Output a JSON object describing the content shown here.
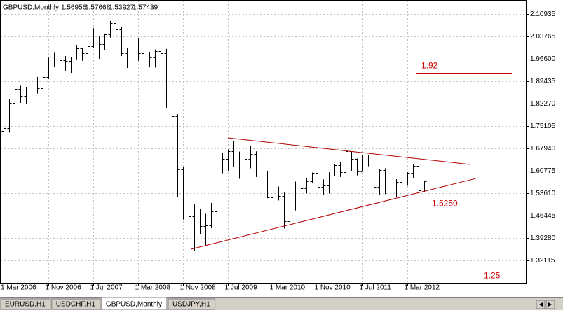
{
  "chart_data": {
    "type": "ohlc",
    "title": "GBPUSD,Monthly",
    "categories": [
      "1 Mar 2006",
      null,
      null,
      null,
      null,
      null,
      null,
      null,
      "1 Nov 2006",
      null,
      null,
      null,
      null,
      null,
      null,
      null,
      "1 Jul 2007",
      null,
      null,
      null,
      null,
      null,
      null,
      null,
      "1 Mar 2008",
      null,
      null,
      null,
      null,
      null,
      null,
      null,
      "1 Nov 2008",
      null,
      null,
      null,
      null,
      null,
      null,
      null,
      "1 Jul 2009",
      null,
      null,
      null,
      null,
      null,
      null,
      null,
      "1 Mar 2010",
      null,
      null,
      null,
      null,
      null,
      null,
      null,
      "1 Nov 2010",
      null,
      null,
      null,
      null,
      null,
      null,
      null,
      "1 Jul 2011",
      null,
      null,
      null,
      null,
      null,
      null,
      null,
      "1 Mar 2012",
      null,
      null,
      null
    ],
    "open": [
      1.735,
      1.745,
      1.825,
      1.87,
      1.848,
      1.868,
      1.905,
      1.871,
      1.908,
      1.965,
      1.958,
      1.962,
      1.96,
      1.967,
      2.0,
      1.983,
      2.007,
      2.034,
      2.014,
      2.044,
      2.081,
      2.06,
      1.985,
      1.989,
      1.989,
      1.985,
      1.98,
      1.97,
      1.991,
      1.984,
      1.822,
      1.782,
      1.612,
      1.532,
      1.463,
      1.45,
      1.432,
      1.433,
      1.479,
      1.614,
      1.646,
      1.67,
      1.63,
      1.598,
      1.646,
      1.661,
      1.614,
      1.599,
      1.523,
      1.518,
      1.528,
      1.446,
      1.495,
      1.569,
      1.551,
      1.574,
      1.602,
      1.557,
      1.561,
      1.598,
      1.626,
      1.604,
      1.67,
      1.645,
      1.605,
      1.643,
      1.63,
      1.556,
      1.609,
      1.57,
      1.554,
      1.571,
      1.591,
      1.6,
      1.623,
      1.56956
    ],
    "high": [
      1.765,
      1.838,
      1.9,
      1.88,
      1.875,
      1.91,
      1.908,
      1.915,
      1.97,
      1.985,
      1.978,
      1.975,
      1.971,
      2.009,
      2.002,
      2.008,
      2.064,
      2.038,
      2.047,
      2.087,
      2.116,
      2.067,
      2.001,
      1.998,
      2.032,
      2.005,
      1.988,
      1.996,
      2.008,
      1.998,
      1.849,
      1.789,
      1.62,
      1.549,
      1.5,
      1.485,
      1.47,
      1.505,
      1.619,
      1.666,
      1.676,
      1.704,
      1.669,
      1.668,
      1.687,
      1.67,
      1.644,
      1.608,
      1.528,
      1.557,
      1.538,
      1.51,
      1.573,
      1.597,
      1.585,
      1.602,
      1.629,
      1.58,
      1.603,
      1.63,
      1.637,
      1.675,
      1.67,
      1.647,
      1.659,
      1.659,
      1.636,
      1.614,
      1.616,
      1.577,
      1.581,
      1.598,
      1.603,
      1.63,
      1.628,
      1.57668
    ],
    "low": [
      1.715,
      1.73,
      1.815,
      1.825,
      1.822,
      1.855,
      1.855,
      1.85,
      1.901,
      1.939,
      1.935,
      1.928,
      1.921,
      1.962,
      1.96,
      1.966,
      2.002,
      1.965,
      1.994,
      2.034,
      2.04,
      1.975,
      1.937,
      1.935,
      1.96,
      1.955,
      1.939,
      1.938,
      1.97,
      1.808,
      1.735,
      1.523,
      1.452,
      1.436,
      1.351,
      1.405,
      1.37,
      1.424,
      1.475,
      1.6,
      1.606,
      1.62,
      1.582,
      1.569,
      1.616,
      1.588,
      1.585,
      1.52,
      1.475,
      1.513,
      1.423,
      1.432,
      1.481,
      1.54,
      1.535,
      1.569,
      1.55,
      1.53,
      1.535,
      1.59,
      1.588,
      1.6,
      1.606,
      1.593,
      1.606,
      1.622,
      1.529,
      1.531,
      1.533,
      1.538,
      1.523,
      1.564,
      1.56,
      1.585,
      1.535,
      1.53927
    ],
    "close": [
      1.745,
      1.825,
      1.87,
      1.848,
      1.868,
      1.905,
      1.871,
      1.908,
      1.965,
      1.958,
      1.962,
      1.96,
      1.967,
      2.0,
      1.983,
      2.007,
      2.034,
      2.014,
      2.044,
      2.081,
      2.06,
      1.985,
      1.989,
      1.989,
      1.985,
      1.98,
      1.97,
      1.991,
      1.984,
      1.822,
      1.782,
      1.612,
      1.532,
      1.463,
      1.45,
      1.432,
      1.433,
      1.479,
      1.614,
      1.646,
      1.67,
      1.63,
      1.598,
      1.646,
      1.661,
      1.614,
      1.599,
      1.523,
      1.518,
      1.528,
      1.446,
      1.495,
      1.569,
      1.551,
      1.574,
      1.602,
      1.557,
      1.561,
      1.598,
      1.626,
      1.604,
      1.67,
      1.645,
      1.605,
      1.643,
      1.63,
      1.556,
      1.609,
      1.57,
      1.554,
      1.571,
      1.591,
      1.6,
      1.623,
      1.545,
      1.57439
    ],
    "color": "#000000",
    "ylim": [
      1.2473,
      2.1541
    ],
    "yticks": [
      2.10935,
      2.03765,
      {
        "value": 1.966,
        "label": "1.96600"
      },
      1.89435,
      {
        "value": 1.8227,
        "label": "1.82270"
      },
      1.75105,
      {
        "value": 1.6794,
        "label": "1.67940"
      },
      1.60775,
      {
        "value": 1.5361,
        "label": "1.53610"
      },
      1.46445,
      {
        "value": 1.3928,
        "label": "1.39280"
      },
      1.32115
    ],
    "grid": true,
    "annotations": [
      {
        "value": 1.92,
        "label": "1.92"
      },
      {
        "value": 1.525,
        "label": "1.5250"
      },
      {
        "value": 1.25,
        "label": "1.25"
      }
    ],
    "annotation_color": "#cc0000",
    "trendlines": [
      {
        "x": [
          40,
          83.2
        ],
        "y": [
          1.713,
          1.628
        ]
      },
      {
        "x": [
          33.4,
          84.2
        ],
        "y": [
          1.357,
          1.583
        ]
      }
    ],
    "trendline_color": "#b00000"
  },
  "tabs": [
    "EURUSD,H1",
    "USDCHF,H1",
    "GBPUSD,Monthly",
    "USDJPY,H1"
  ],
  "active_tab": 2
}
